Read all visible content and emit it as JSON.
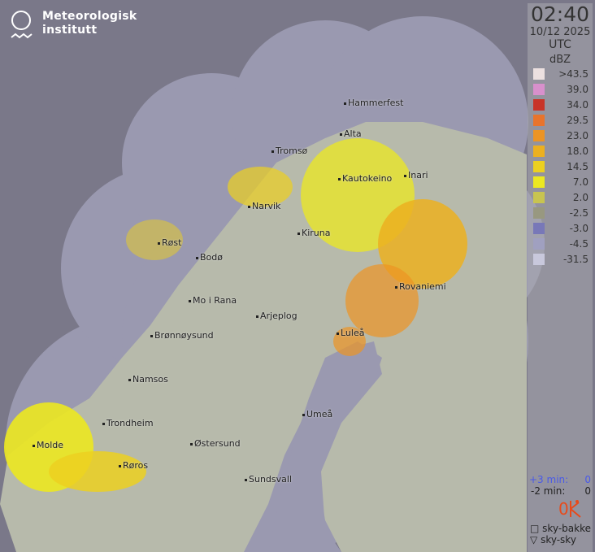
{
  "logo": {
    "line1": "Meteorologisk",
    "line2": "institutt"
  },
  "legend": {
    "time": "02:40",
    "date": "10/12 2025",
    "timezone": "UTC",
    "unit": "dBZ",
    "levels": [
      {
        "label": ">43.5",
        "color": "#ece0e0"
      },
      {
        "label": "39.0",
        "color": "#d890cc"
      },
      {
        "label": "34.0",
        "color": "#c83428"
      },
      {
        "label": "29.5",
        "color": "#e8742c"
      },
      {
        "label": "23.0",
        "color": "#ec9424"
      },
      {
        "label": "18.0",
        "color": "#ecb020"
      },
      {
        "label": "14.5",
        "color": "#ecd020"
      },
      {
        "label": "7.0",
        "color": "#ece820"
      },
      {
        "label": "2.0",
        "color": "#c8c450"
      },
      {
        "label": "-2.5",
        "color": "#989880"
      },
      {
        "label": "-3.0",
        "color": "#7878b8"
      },
      {
        "label": "-4.5",
        "color": "#a0a0c0"
      },
      {
        "label": "-31.5",
        "color": "#c8c8dc"
      }
    ]
  },
  "lightning": {
    "plus3_label": "+3 min:",
    "plus3_value": "0",
    "minus2_label": "-2 min:",
    "minus2_value": "0",
    "total": "0",
    "ground_label": "sky-bakke",
    "cloud_label": "sky-sky"
  },
  "cities": [
    {
      "name": "Hammerfest"
    },
    {
      "name": "Alta"
    },
    {
      "name": "Tromsø"
    },
    {
      "name": "Kautokeino"
    },
    {
      "name": "Inari"
    },
    {
      "name": "Narvik"
    },
    {
      "name": "Kiruna"
    },
    {
      "name": "Røst"
    },
    {
      "name": "Bodø"
    },
    {
      "name": "Rovaniemi"
    },
    {
      "name": "Mo i Rana"
    },
    {
      "name": "Arjeplog"
    },
    {
      "name": "Luleå"
    },
    {
      "name": "Brønnøysund"
    },
    {
      "name": "Namsos"
    },
    {
      "name": "Umeå"
    },
    {
      "name": "Trondheim"
    },
    {
      "name": "Molde"
    },
    {
      "name": "Østersund"
    },
    {
      "name": "Røros"
    },
    {
      "name": "Sundsvall"
    }
  ]
}
